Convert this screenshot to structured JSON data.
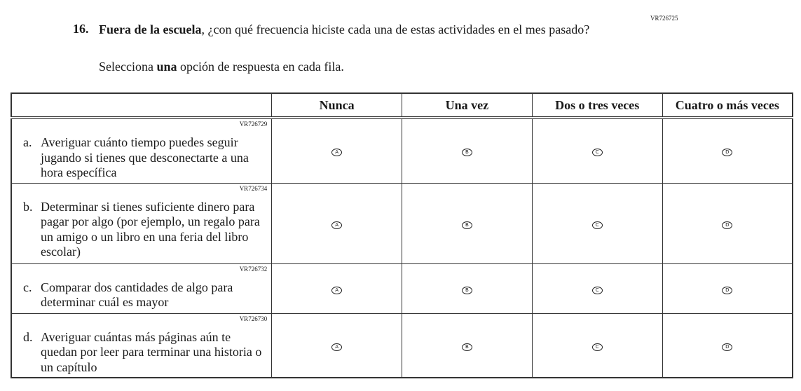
{
  "question": {
    "id": "VR726725",
    "number": "16.",
    "text_bold": "Fuera de la escuela",
    "text_rest": ", ¿con qué frecuencia hiciste cada una de estas actividades en el mes pasado?",
    "instruction_pre": "Selecciona ",
    "instruction_bold": "una",
    "instruction_post": " opción de respuesta en cada fila."
  },
  "columns": [
    "Nunca",
    "Una vez",
    "Dos o tres veces",
    "Cuatro o más veces"
  ],
  "options": [
    "A",
    "B",
    "C",
    "D"
  ],
  "rows": [
    {
      "id": "VR726729",
      "letter": "a.",
      "text": "Averiguar cuánto tiempo puedes seguir jugando si tienes que desconectarte a una hora específica"
    },
    {
      "id": "VR726734",
      "letter": "b.",
      "text": "Determinar si tienes suficiente dinero para pagar por algo (por ejemplo, un regalo para un amigo o un libro en una feria del libro escolar)"
    },
    {
      "id": "VR726732",
      "letter": "c.",
      "text": "Comparar dos cantidades de algo para determinar cuál es mayor"
    },
    {
      "id": "VR726730",
      "letter": "d.",
      "text": "Averiguar cuántas más páginas aún te quedan por leer para terminar una historia o un capítulo"
    }
  ]
}
